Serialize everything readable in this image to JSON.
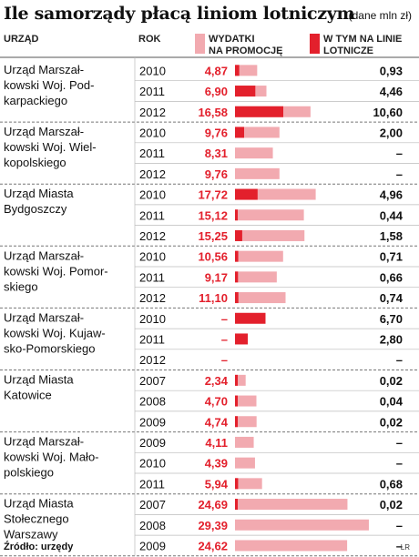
{
  "title": "Ile samorządy płacą liniom lotniczym",
  "units_note": "(dane mln zł)",
  "headers": {
    "office": "URZĄD",
    "year": "ROK",
    "legend_promo": [
      "WYDATKI",
      "NA PROMOCJĘ"
    ],
    "legend_airline": [
      "W TYM NA LINIE",
      "LOTNICZE"
    ]
  },
  "colors": {
    "promo": "#f2aab0",
    "airline": "#e3202c",
    "red_text": "#e3202c",
    "divider": "#777777",
    "row_line": "#bbbbbb"
  },
  "source": "Źródło: urzędy",
  "credit": "LR",
  "chart_data": {
    "type": "bar",
    "series": [
      {
        "name": "WYDATKI NA PROMOCJĘ",
        "color": "#f2aab0"
      },
      {
        "name": "W TYM NA LINIE LOTNICZE",
        "color": "#e3202c"
      }
    ],
    "groups": [
      {
        "office": [
          "Urząd Marszał-",
          "kowski Woj. Pod-",
          "karpackiego"
        ],
        "rows": [
          {
            "year": "2010",
            "promo": 4.87,
            "promo_label": "4,87",
            "airline": 0.93,
            "airline_label": "0,93"
          },
          {
            "year": "2011",
            "promo": 6.9,
            "promo_label": "6,90",
            "airline": 4.46,
            "airline_label": "4,46"
          },
          {
            "year": "2012",
            "promo": 16.58,
            "promo_label": "16,58",
            "airline": 10.6,
            "airline_label": "10,60"
          }
        ]
      },
      {
        "office": [
          "Urząd Marszał-",
          "kowski Woj. Wiel-",
          "kopolskiego"
        ],
        "rows": [
          {
            "year": "2010",
            "promo": 9.76,
            "promo_label": "9,76",
            "airline": 2.0,
            "airline_label": "2,00"
          },
          {
            "year": "2011",
            "promo": 8.31,
            "promo_label": "8,31",
            "airline": null,
            "airline_label": "–"
          },
          {
            "year": "2012",
            "promo": 9.76,
            "promo_label": "9,76",
            "airline": null,
            "airline_label": "–"
          }
        ]
      },
      {
        "office": [
          "Urząd Miasta",
          "Bydgoszczy"
        ],
        "rows": [
          {
            "year": "2010",
            "promo": 17.72,
            "promo_label": "17,72",
            "airline": 4.96,
            "airline_label": "4,96"
          },
          {
            "year": "2011",
            "promo": 15.12,
            "promo_label": "15,12",
            "airline": 0.44,
            "airline_label": "0,44"
          },
          {
            "year": "2012",
            "promo": 15.25,
            "promo_label": "15,25",
            "airline": 1.58,
            "airline_label": "1,58"
          }
        ]
      },
      {
        "office": [
          "Urząd Marszał-",
          "kowski Woj. Pomor-",
          "skiego"
        ],
        "rows": [
          {
            "year": "2010",
            "promo": 10.56,
            "promo_label": "10,56",
            "airline": 0.71,
            "airline_label": "0,71"
          },
          {
            "year": "2011",
            "promo": 9.17,
            "promo_label": "9,17",
            "airline": 0.66,
            "airline_label": "0,66"
          },
          {
            "year": "2012",
            "promo": 11.1,
            "promo_label": "11,10",
            "airline": 0.74,
            "airline_label": "0,74"
          }
        ]
      },
      {
        "office": [
          "Urząd Marszał-",
          "kowski Woj. Kujaw-",
          "sko-Pomorskiego"
        ],
        "rows": [
          {
            "year": "2010",
            "promo": null,
            "promo_label": "–",
            "airline": 6.7,
            "airline_label": "6,70"
          },
          {
            "year": "2011",
            "promo": null,
            "promo_label": "–",
            "airline": 2.8,
            "airline_label": "2,80"
          },
          {
            "year": "2012",
            "promo": null,
            "promo_label": "–",
            "airline": null,
            "airline_label": "–"
          }
        ]
      },
      {
        "office": [
          "Urząd Miasta",
          "Katowice"
        ],
        "rows": [
          {
            "year": "2007",
            "promo": 2.34,
            "promo_label": "2,34",
            "airline": 0.02,
            "airline_label": "0,02"
          },
          {
            "year": "2008",
            "promo": 4.7,
            "promo_label": "4,70",
            "airline": 0.04,
            "airline_label": "0,04"
          },
          {
            "year": "2009",
            "promo": 4.74,
            "promo_label": "4,74",
            "airline": 0.02,
            "airline_label": "0,02"
          }
        ]
      },
      {
        "office": [
          "Urząd Marszał-",
          "kowski Woj. Mało-",
          "polskiego"
        ],
        "rows": [
          {
            "year": "2009",
            "promo": 4.11,
            "promo_label": "4,11",
            "airline": null,
            "airline_label": "–"
          },
          {
            "year": "2010",
            "promo": 4.39,
            "promo_label": "4,39",
            "airline": null,
            "airline_label": "–"
          },
          {
            "year": "2011",
            "promo": 5.94,
            "promo_label": "5,94",
            "airline": 0.68,
            "airline_label": "0,68"
          }
        ]
      },
      {
        "office": [
          "Urząd Miasta",
          "Stołecznego",
          "Warszawy"
        ],
        "rows": [
          {
            "year": "2007",
            "promo": 24.69,
            "promo_label": "24,69",
            "airline": 0.02,
            "airline_label": "0,02"
          },
          {
            "year": "2008",
            "promo": 29.39,
            "promo_label": "29,39",
            "airline": null,
            "airline_label": "–"
          },
          {
            "year": "2009",
            "promo": 24.62,
            "promo_label": "24,62",
            "airline": null,
            "airline_label": "–"
          }
        ]
      }
    ]
  }
}
